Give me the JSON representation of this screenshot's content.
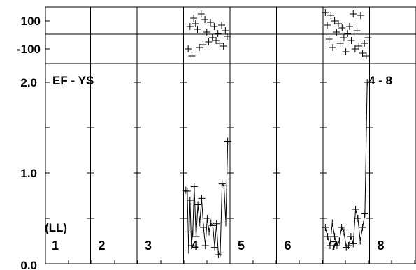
{
  "chart_data": {
    "type": "line",
    "title": "EF - YS",
    "corner_label": "4 - 8",
    "unit_label": "(LL)",
    "top_panel": {
      "type": "scatter",
      "ylim": [
        -160,
        175
      ],
      "y_tick_labels": [
        "100",
        "-100"
      ],
      "y_ticks": [
        100,
        -100
      ],
      "reference_line": 0,
      "series": [
        {
          "segment": "4",
          "x": [
            4.1,
            4.14,
            4.18,
            4.22,
            4.26,
            4.3,
            4.34,
            4.38,
            4.42,
            4.46,
            4.5,
            4.54,
            4.58,
            4.62,
            4.66,
            4.7,
            4.74,
            4.78,
            4.82,
            4.86,
            4.9,
            4.94
          ],
          "y": [
            -100,
            60,
            -150,
            120,
            80,
            40,
            -90,
            150,
            -70,
            110,
            20,
            -50,
            90,
            -20,
            60,
            -40,
            10,
            -60,
            70,
            -80,
            30,
            -10
          ]
        },
        {
          "segment": "7",
          "x": [
            7.05,
            7.09,
            7.13,
            7.17,
            7.21,
            7.25,
            7.29,
            7.33,
            7.37,
            7.41,
            7.45,
            7.49,
            7.53,
            7.57,
            7.61,
            7.65,
            7.69,
            7.73,
            7.77,
            7.81,
            7.85,
            7.89,
            7.93,
            7.97
          ],
          "y": [
            160,
            70,
            -30,
            140,
            -90,
            100,
            20,
            80,
            -60,
            50,
            -20,
            -120,
            10,
            60,
            -40,
            150,
            -100,
            30,
            -80,
            140,
            -130,
            -60,
            -150,
            -20
          ]
        }
      ]
    },
    "main_panel": {
      "ylim": [
        0.0,
        2.0
      ],
      "y_tick_labels": [
        "2.0",
        "1.0",
        "0.0"
      ],
      "y_ticks": [
        2.0,
        1.0,
        0.0
      ],
      "xlim": [
        1,
        9
      ],
      "segment_labels": [
        "1",
        "2",
        "3",
        "4",
        "5",
        "6",
        "7",
        "8"
      ],
      "series": [
        {
          "segment": "4",
          "x": [
            4.05,
            4.08,
            4.11,
            4.14,
            4.17,
            4.2,
            4.23,
            4.27,
            4.31,
            4.35,
            4.39,
            4.43,
            4.47,
            4.51,
            4.55,
            4.59,
            4.63,
            4.67,
            4.71,
            4.75,
            4.79,
            4.83,
            4.87,
            4.91,
            4.95
          ],
          "y": [
            0.81,
            0.8,
            0.15,
            0.7,
            0.2,
            0.35,
            0.85,
            0.3,
            0.65,
            0.45,
            0.72,
            0.4,
            0.2,
            0.5,
            0.35,
            0.45,
            0.42,
            0.18,
            0.44,
            0.1,
            0.12,
            0.88,
            0.86,
            0.45,
            1.35
          ]
        },
        {
          "segment": "7",
          "x": [
            7.05,
            7.1,
            7.15,
            7.2,
            7.25,
            7.3,
            7.35,
            7.4,
            7.45,
            7.5,
            7.55,
            7.6,
            7.65,
            7.7,
            7.75,
            7.8,
            7.85,
            7.9,
            7.95
          ],
          "y": [
            0.4,
            0.3,
            0.2,
            0.45,
            0.3,
            0.2,
            0.25,
            0.4,
            0.35,
            0.18,
            0.2,
            0.3,
            0.22,
            0.6,
            0.5,
            0.25,
            0.4,
            0.55,
            2.0
          ]
        }
      ]
    }
  }
}
